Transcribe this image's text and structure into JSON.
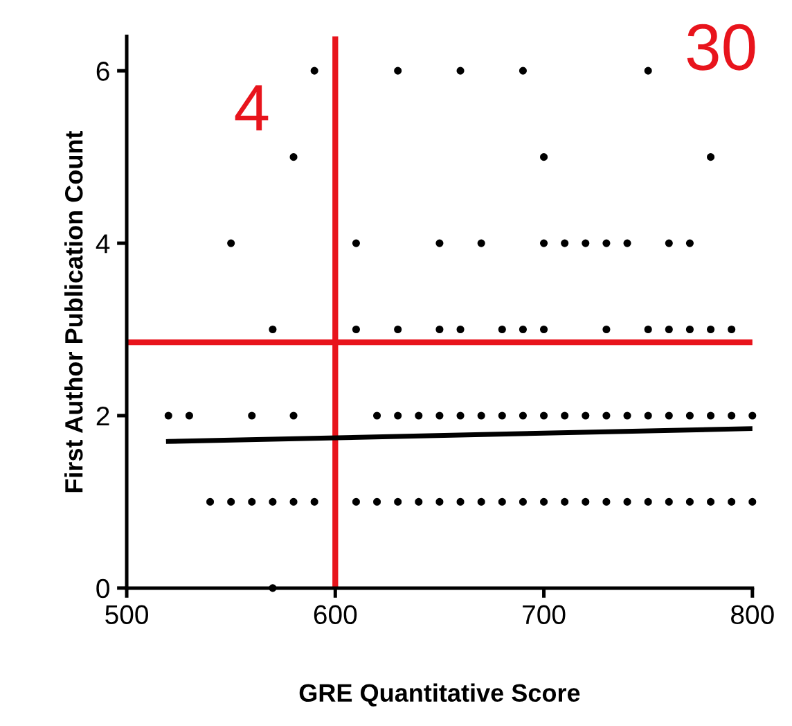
{
  "chart_data": {
    "type": "scatter",
    "xlabel": "GRE Quantitative Score",
    "ylabel": "First Author Publication Count",
    "xlim": [
      500,
      800
    ],
    "xticks": [
      500,
      600,
      700,
      800
    ],
    "ylim": [
      0,
      6.4
    ],
    "yticks": [
      0,
      2,
      4,
      6
    ],
    "grid": false,
    "legend": false,
    "marker": "circle",
    "series": [
      {
        "color": "#000000",
        "x": [
          590,
          630,
          660,
          690,
          750,
          580,
          700,
          780,
          550,
          610,
          650,
          670,
          700,
          710,
          720,
          730,
          740,
          760,
          770,
          570,
          610,
          630,
          650,
          660,
          680,
          690,
          700,
          730,
          750,
          760,
          770,
          780,
          790,
          520,
          530,
          560,
          580,
          620,
          630,
          640,
          650,
          660,
          670,
          680,
          690,
          700,
          710,
          720,
          730,
          740,
          750,
          760,
          770,
          780,
          790,
          800,
          540,
          550,
          560,
          570,
          580,
          590,
          610,
          620,
          630,
          640,
          650,
          660,
          670,
          680,
          690,
          700,
          710,
          720,
          730,
          740,
          750,
          760,
          770,
          780,
          790,
          800,
          570
        ],
        "values": [
          6,
          6,
          6,
          6,
          6,
          5,
          5,
          5,
          4,
          4,
          4,
          4,
          4,
          4,
          4,
          4,
          4,
          4,
          4,
          3,
          3,
          3,
          3,
          3,
          3,
          3,
          3,
          3,
          3,
          3,
          3,
          3,
          3,
          2,
          2,
          2,
          2,
          2,
          2,
          2,
          2,
          2,
          2,
          2,
          2,
          2,
          2,
          2,
          2,
          2,
          2,
          2,
          2,
          2,
          2,
          2,
          1,
          1,
          1,
          1,
          1,
          1,
          1,
          1,
          1,
          1,
          1,
          1,
          1,
          1,
          1,
          1,
          1,
          1,
          1,
          1,
          1,
          1,
          1,
          1,
          1,
          1,
          0
        ]
      },
      {
        "type": "line",
        "color": "#000000",
        "marker": "none",
        "x": [
          520,
          800
        ],
        "values": [
          1.7,
          1.85
        ]
      }
    ],
    "ref_lines": [
      {
        "axis": "x",
        "value": 600,
        "color": "#e8141c"
      },
      {
        "axis": "y",
        "value": 2.85,
        "color": "#e8141c"
      }
    ],
    "annotations": [
      "4",
      "30"
    ]
  }
}
